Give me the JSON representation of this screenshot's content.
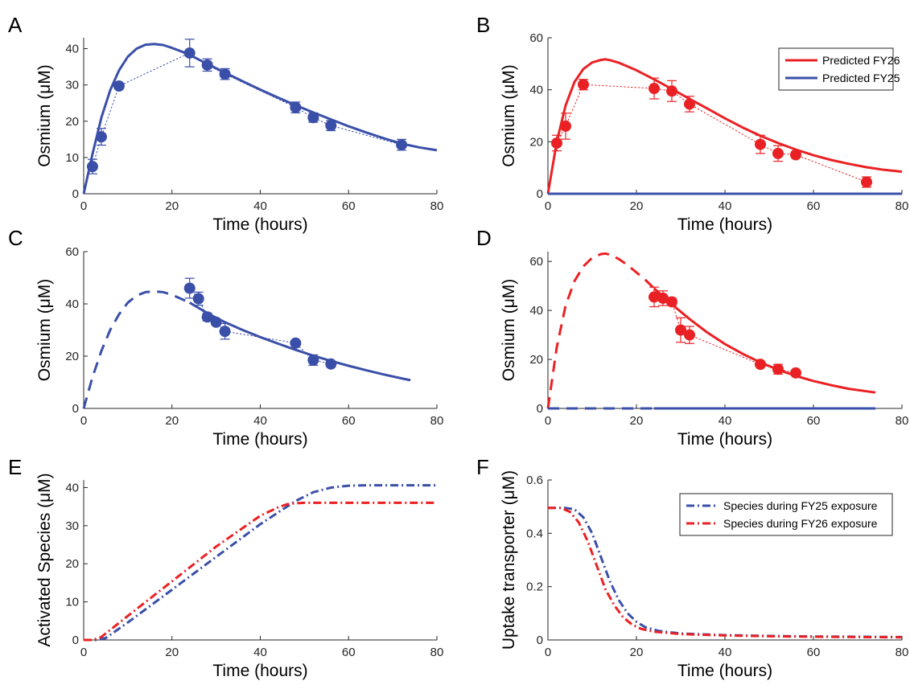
{
  "colors": {
    "blue": "#3a4fa8",
    "red": "#ea2124"
  },
  "chart_data": [
    {
      "id": "A",
      "type": "line",
      "panel_letter": "A",
      "xlabel": "Time (hours)",
      "ylabel": "Osmium (μM)",
      "xlim": [
        0,
        80
      ],
      "ylim": [
        0,
        43
      ],
      "xticks": [
        0,
        20,
        40,
        60,
        80
      ],
      "yticks": [
        0,
        10,
        20,
        30,
        40
      ],
      "legend": null,
      "series": [
        {
          "color": "blue",
          "style": "solid",
          "width": 3,
          "x": [
            0,
            2,
            4,
            6,
            8,
            10,
            12,
            14,
            16,
            18,
            20,
            22,
            24,
            28,
            32,
            36,
            40,
            44,
            48,
            52,
            56,
            60,
            64,
            68,
            72,
            76,
            80
          ],
          "y": [
            0,
            11,
            21,
            28.5,
            34,
            37.8,
            40,
            41.1,
            41.3,
            41,
            40.2,
            39.3,
            38.3,
            35.8,
            33.4,
            31,
            28.7,
            26.5,
            24.4,
            22.4,
            20.5,
            18.6,
            16.9,
            15.3,
            13.8,
            12.8,
            12
          ]
        },
        {
          "color": "blue",
          "style": "dotted",
          "width": 1,
          "markers": true,
          "x": [
            2,
            4,
            8,
            24,
            28,
            32,
            48,
            52,
            56,
            72
          ],
          "y": [
            7.5,
            15.7,
            29.7,
            38.8,
            35.5,
            33,
            23.8,
            21,
            18.8,
            13.5
          ],
          "err": [
            2,
            2.3,
            0.6,
            3.8,
            1.7,
            1.5,
            1.5,
            1.3,
            1.4,
            1.5
          ]
        }
      ]
    },
    {
      "id": "B",
      "type": "line",
      "panel_letter": "B",
      "xlabel": "Time (hours)",
      "ylabel": "Osmium (μM)",
      "xlim": [
        0,
        80
      ],
      "ylim": [
        0,
        60
      ],
      "xticks": [
        0,
        20,
        40,
        60,
        80
      ],
      "yticks": [
        0,
        20,
        40,
        60
      ],
      "legend": [
        "Predicted FY26",
        "Predicted FY25"
      ],
      "series": [
        {
          "name": "Predicted FY26",
          "color": "red",
          "style": "solid",
          "width": 3,
          "x": [
            0,
            2,
            4,
            6,
            8,
            10,
            12,
            13,
            14,
            16,
            18,
            20,
            24,
            28,
            32,
            36,
            40,
            44,
            48,
            52,
            56,
            60,
            64,
            68,
            72,
            76,
            80
          ],
          "y": [
            0,
            20,
            34,
            43,
            48,
            50.5,
            51.5,
            51.7,
            51.4,
            50.4,
            49,
            47.5,
            44,
            40.3,
            36.5,
            32.8,
            29,
            25.5,
            22.3,
            19.5,
            17,
            14.8,
            13,
            11.5,
            10.2,
            9.2,
            8.5
          ]
        },
        {
          "name": "Predicted FY25",
          "color": "blue",
          "style": "solid",
          "width": 3,
          "x": [
            0,
            80
          ],
          "y": [
            0,
            0
          ]
        },
        {
          "color": "red",
          "style": "dotted",
          "width": 1,
          "markers": true,
          "x": [
            2,
            4,
            8,
            24,
            28,
            32,
            48,
            52,
            56,
            72
          ],
          "y": [
            19.5,
            26,
            42,
            40.5,
            39.5,
            34.5,
            19,
            15.5,
            15,
            4.5
          ],
          "err": [
            3,
            5,
            2,
            4,
            4,
            3,
            3.5,
            3,
            1,
            2
          ]
        }
      ]
    },
    {
      "id": "C",
      "type": "line",
      "panel_letter": "C",
      "xlabel": "Time (hours)",
      "ylabel": "Osmium (μM)",
      "xlim": [
        0,
        80
      ],
      "ylim": [
        0,
        60
      ],
      "xticks": [
        0,
        20,
        40,
        60,
        80
      ],
      "yticks": [
        0,
        20,
        40,
        60
      ],
      "legend": null,
      "series": [
        {
          "color": "blue",
          "style": "dashed",
          "width": 3,
          "x": [
            0,
            2,
            4,
            6,
            8,
            10,
            12,
            14,
            16,
            18,
            20,
            22,
            24
          ],
          "y": [
            0,
            12,
            22,
            30,
            36,
            40.5,
            43.2,
            44.5,
            44.8,
            44.5,
            43.5,
            42,
            40.5
          ]
        },
        {
          "color": "blue",
          "style": "solid",
          "width": 3,
          "x": [
            24,
            28,
            32,
            36,
            40,
            44,
            48,
            52,
            56,
            60,
            64,
            68,
            72,
            74
          ],
          "y": [
            40.5,
            36.5,
            33,
            30,
            27.3,
            24.8,
            22.4,
            20.2,
            18.2,
            16.3,
            14.6,
            13,
            11.5,
            10.8
          ]
        },
        {
          "color": "blue",
          "style": "dotted",
          "width": 1,
          "markers": true,
          "x": [
            24,
            26,
            28,
            30,
            32,
            48,
            52,
            56
          ],
          "y": [
            46,
            42,
            35,
            33,
            29.5,
            25,
            18.5,
            17
          ],
          "err": [
            3.8,
            2.5,
            1.5,
            1,
            3,
            0,
            2,
            1
          ]
        }
      ]
    },
    {
      "id": "D",
      "type": "line",
      "panel_letter": "D",
      "xlabel": "Time (hours)",
      "ylabel": "Osmium (μM)",
      "xlim": [
        0,
        80
      ],
      "ylim": [
        0,
        64
      ],
      "xticks": [
        0,
        20,
        40,
        60,
        80
      ],
      "yticks": [
        0,
        20,
        40,
        60
      ],
      "legend": null,
      "series": [
        {
          "color": "red",
          "style": "dashed",
          "width": 3,
          "x": [
            0,
            2,
            4,
            6,
            8,
            10,
            12,
            13,
            14,
            16,
            18,
            20,
            22,
            24
          ],
          "y": [
            0,
            25,
            42,
            52,
            58,
            61.5,
            63,
            63.2,
            62.8,
            61,
            58.5,
            55.5,
            52.5,
            49
          ]
        },
        {
          "color": "red",
          "style": "solid",
          "width": 3,
          "x": [
            24,
            28,
            32,
            36,
            40,
            44,
            48,
            52,
            56,
            60,
            64,
            68,
            72,
            74
          ],
          "y": [
            49,
            42.5,
            36.5,
            31,
            26.3,
            22.3,
            18.8,
            15.8,
            13.3,
            11.2,
            9.5,
            8,
            7,
            6.5
          ]
        },
        {
          "color": "blue",
          "style": "dashed",
          "width": 3,
          "x": [
            0,
            24
          ],
          "y": [
            0,
            0
          ]
        },
        {
          "color": "blue",
          "style": "solid",
          "width": 3,
          "x": [
            24,
            74
          ],
          "y": [
            0,
            0
          ]
        },
        {
          "color": "red",
          "style": "dotted",
          "width": 1,
          "markers": true,
          "x": [
            24,
            26,
            28,
            30,
            32,
            48,
            52,
            56
          ],
          "y": [
            45.5,
            45,
            43.5,
            32,
            30,
            18,
            16,
            14.5
          ],
          "err": [
            4,
            3,
            1.5,
            5,
            3.5,
            1,
            2,
            1
          ]
        }
      ]
    },
    {
      "id": "E",
      "type": "line",
      "panel_letter": "E",
      "xlabel": "Time (hours)",
      "ylabel": "Activated Species (μM)",
      "xlim": [
        0,
        80
      ],
      "ylim": [
        0,
        42
      ],
      "xticks": [
        0,
        20,
        40,
        60,
        80
      ],
      "yticks": [
        0,
        10,
        20,
        30,
        40
      ],
      "legend": null,
      "series": [
        {
          "color": "blue",
          "style": "dashdot",
          "width": 3,
          "x": [
            0,
            3,
            5,
            10,
            20,
            30,
            40,
            48,
            52,
            56,
            60,
            64,
            80
          ],
          "y": [
            0,
            0,
            0.5,
            4.6,
            13.2,
            21.8,
            30.4,
            36.5,
            38.8,
            40,
            40.5,
            40.6,
            40.6
          ]
        },
        {
          "color": "red",
          "style": "dashdot",
          "width": 3,
          "x": [
            0,
            2,
            4,
            10,
            20,
            30,
            40,
            44,
            46,
            48,
            50,
            80
          ],
          "y": [
            0,
            0,
            0.8,
            6.3,
            15.4,
            24.5,
            32.6,
            34.8,
            35.6,
            35.9,
            36,
            36
          ]
        }
      ]
    },
    {
      "id": "F",
      "type": "line",
      "panel_letter": "F",
      "xlabel": "Time (hours)",
      "ylabel": "Uptake transporter (μM)",
      "xlim": [
        0,
        80
      ],
      "ylim": [
        0,
        0.6
      ],
      "xticks": [
        0,
        20,
        40,
        60,
        80
      ],
      "yticks": [
        0,
        0.2,
        0.4,
        0.6
      ],
      "legend": [
        "Species during FY25 exposure",
        "Species during FY26 exposure"
      ],
      "series": [
        {
          "name": "Species during FY25 exposure",
          "color": "blue",
          "style": "dashdot",
          "width": 3,
          "x": [
            0,
            4,
            6,
            8,
            10,
            12,
            14,
            16,
            18,
            20,
            22,
            25,
            30,
            40,
            50,
            60,
            70,
            80
          ],
          "y": [
            0.495,
            0.495,
            0.49,
            0.46,
            0.4,
            0.31,
            0.22,
            0.15,
            0.1,
            0.068,
            0.048,
            0.034,
            0.024,
            0.018,
            0.015,
            0.013,
            0.012,
            0.011
          ]
        },
        {
          "name": "Species during FY26 exposure",
          "color": "red",
          "style": "dashdot",
          "width": 3,
          "x": [
            0,
            3,
            5,
            7,
            9,
            11,
            13,
            15,
            17,
            19,
            21,
            24,
            30,
            40,
            50,
            60,
            70,
            80
          ],
          "y": [
            0.495,
            0.495,
            0.48,
            0.44,
            0.37,
            0.28,
            0.19,
            0.13,
            0.085,
            0.058,
            0.042,
            0.031,
            0.022,
            0.017,
            0.014,
            0.012,
            0.011,
            0.01
          ]
        }
      ]
    }
  ]
}
